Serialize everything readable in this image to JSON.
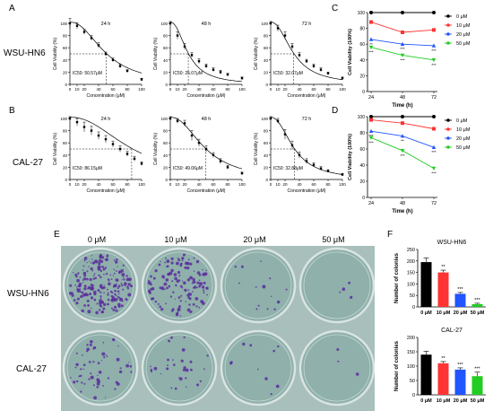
{
  "panels": {
    "A": "A",
    "B": "B",
    "C": "C",
    "D": "D",
    "E": "E",
    "F": "F"
  },
  "row_labels": {
    "wsu": "WSU-HN6",
    "cal": "CAL-27"
  },
  "plate_columns": [
    "0 μM",
    "10 μM",
    "20 μM",
    "50 μM"
  ],
  "colors": {
    "c0": "#000000",
    "c10": "#ff3333",
    "c20": "#2255ff",
    "c50": "#22cc22",
    "plate_bg": "#8fb0ab",
    "plate_rim": "#d9e4e2",
    "colony": "#5b2d9c"
  },
  "chart_data": [
    {
      "id": "A-24",
      "type": "scatter",
      "title": "24 h",
      "ic50_label": "IC50: 50.57μM",
      "xlabel": "Concentration (μM)",
      "ylabel": "Cell Viability (%)",
      "ylim": [
        0,
        100
      ],
      "yticks": [
        0,
        20,
        40,
        60,
        80,
        100
      ],
      "xticks": [
        0,
        10,
        20,
        40,
        60,
        80,
        100
      ],
      "ic50": 50.57,
      "x": [
        0,
        10,
        20,
        30,
        40,
        50,
        60,
        70,
        80,
        100
      ],
      "y": [
        100,
        96,
        86,
        76,
        64,
        50,
        40,
        30,
        22,
        8
      ],
      "err": [
        8,
        5,
        4,
        4,
        4,
        3,
        3,
        3,
        2,
        2
      ]
    },
    {
      "id": "A-48",
      "type": "scatter",
      "title": "48 h",
      "ic50_label": "IC50: 25.07μM",
      "xlabel": "Concentration (μM)",
      "ylabel": "Cell Viability (%)",
      "ylim": [
        0,
        100
      ],
      "yticks": [
        0,
        20,
        40,
        60,
        80,
        100
      ],
      "xticks": [
        0,
        10,
        20,
        40,
        60,
        80,
        100
      ],
      "ic50": 25.07,
      "x": [
        0,
        10,
        20,
        30,
        40,
        50,
        60,
        70,
        80,
        100
      ],
      "y": [
        100,
        80,
        62,
        48,
        38,
        30,
        24,
        20,
        16,
        10
      ],
      "err": [
        3,
        6,
        5,
        4,
        4,
        3,
        3,
        3,
        2,
        2
      ]
    },
    {
      "id": "A-72",
      "type": "scatter",
      "title": "72 h",
      "ic50_label": "IC50: 32.07μM",
      "xlabel": "Concentration (μM)",
      "ylabel": "Cell Viability (%)",
      "ylim": [
        0,
        100
      ],
      "yticks": [
        0,
        20,
        40,
        60,
        80,
        100
      ],
      "xticks": [
        0,
        10,
        20,
        40,
        60,
        80,
        100
      ],
      "ic50": 32.07,
      "x": [
        0,
        10,
        20,
        30,
        40,
        50,
        60,
        70,
        80,
        100
      ],
      "y": [
        100,
        92,
        80,
        62,
        48,
        38,
        30,
        24,
        18,
        10
      ],
      "err": [
        3,
        5,
        6,
        5,
        4,
        3,
        3,
        3,
        2,
        2
      ]
    },
    {
      "id": "B-24",
      "type": "scatter",
      "title": "24 h",
      "ic50_label": "IC50: 86.15μM",
      "xlabel": "Concentration (μM)",
      "ylabel": "Cell Viability (%)",
      "ylim": [
        0,
        100
      ],
      "yticks": [
        0,
        20,
        40,
        60,
        80,
        100
      ],
      "xticks": [
        0,
        10,
        20,
        40,
        60,
        80,
        100
      ],
      "ic50": 86.15,
      "x": [
        0,
        10,
        20,
        30,
        40,
        50,
        60,
        70,
        80,
        90,
        100
      ],
      "y": [
        100,
        94,
        86,
        80,
        72,
        66,
        58,
        50,
        42,
        34,
        26
      ],
      "err": [
        3,
        6,
        8,
        7,
        6,
        6,
        5,
        5,
        4,
        4,
        3
      ]
    },
    {
      "id": "B-48",
      "type": "scatter",
      "title": "48 h",
      "ic50_label": "IC50: 49.06μM",
      "xlabel": "Concentration (μM)",
      "ylabel": "Cell Viability (%)",
      "ylim": [
        0,
        100
      ],
      "yticks": [
        0,
        20,
        40,
        60,
        80,
        100
      ],
      "xticks": [
        0,
        10,
        20,
        40,
        60,
        80,
        100
      ],
      "ic50": 49.06,
      "x": [
        0,
        10,
        20,
        30,
        40,
        50,
        60,
        70,
        80,
        100
      ],
      "y": [
        100,
        96,
        92,
        72,
        60,
        50,
        40,
        30,
        20,
        10
      ],
      "err": [
        3,
        4,
        5,
        8,
        6,
        5,
        4,
        4,
        3,
        2
      ]
    },
    {
      "id": "B-72",
      "type": "scatter",
      "title": "72 h",
      "ic50_label": "IC50: 32.88μM",
      "xlabel": "Concentration (μM)",
      "ylabel": "Cell Viability (%)",
      "ylim": [
        0,
        100
      ],
      "yticks": [
        0,
        20,
        40,
        60,
        80,
        100
      ],
      "xticks": [
        0,
        10,
        20,
        40,
        60,
        80,
        100
      ],
      "ic50": 32.88,
      "x": [
        0,
        10,
        20,
        30,
        40,
        50,
        60,
        70,
        80,
        100
      ],
      "y": [
        100,
        96,
        74,
        56,
        40,
        30,
        24,
        18,
        14,
        8
      ],
      "err": [
        3,
        4,
        8,
        7,
        5,
        4,
        3,
        3,
        2,
        2
      ]
    },
    {
      "id": "C",
      "type": "line",
      "xlabel": "Time (h)",
      "ylabel": "Cell Viability (100%)",
      "ylim": [
        0,
        100
      ],
      "yticks": [
        0,
        20,
        40,
        60,
        80,
        100
      ],
      "x": [
        24,
        48,
        72
      ],
      "legend_position": "right",
      "series": [
        {
          "name": "0 μM",
          "values": [
            100,
            100,
            100
          ],
          "color_key": "c0",
          "marker": "circle"
        },
        {
          "name": "10 μM",
          "values": [
            88,
            75,
            78
          ],
          "color_key": "c10",
          "marker": "square"
        },
        {
          "name": "20 μM",
          "values": [
            66,
            60,
            58
          ],
          "color_key": "c20",
          "marker": "triangle"
        },
        {
          "name": "50 μM",
          "values": [
            56,
            46,
            40
          ],
          "color_key": "c50",
          "marker": "triangle-down"
        }
      ],
      "annotations": [
        "**",
        "***",
        "***",
        "***",
        "***",
        "***"
      ]
    },
    {
      "id": "D",
      "type": "line",
      "xlabel": "Time (h)",
      "ylabel": "Cell Viability (100%)",
      "ylim": [
        0,
        100
      ],
      "yticks": [
        0,
        20,
        40,
        60,
        80,
        100
      ],
      "x": [
        24,
        48,
        72
      ],
      "legend_position": "right",
      "series": [
        {
          "name": "0 μM",
          "values": [
            100,
            100,
            100
          ],
          "color_key": "c0",
          "marker": "circle"
        },
        {
          "name": "10 μM",
          "values": [
            96,
            92,
            85
          ],
          "color_key": "c10",
          "marker": "square"
        },
        {
          "name": "20 μM",
          "values": [
            82,
            76,
            62
          ],
          "color_key": "c20",
          "marker": "triangle"
        },
        {
          "name": "50 μM",
          "values": [
            74,
            58,
            36
          ],
          "color_key": "c50",
          "marker": "triangle-down"
        }
      ],
      "annotations": [
        "***",
        "**",
        "***",
        "***",
        "***",
        "***"
      ]
    },
    {
      "id": "F-WSU",
      "type": "bar",
      "title": "WSU-HN6",
      "ylabel": "Number of colonies",
      "categories": [
        "0 μM",
        "10 μM",
        "20 μM",
        "50 μM"
      ],
      "values": [
        195,
        150,
        57,
        12
      ],
      "err": [
        18,
        10,
        6,
        4
      ],
      "ylim": [
        0,
        250
      ],
      "yticks": [
        0,
        50,
        100,
        150,
        200,
        250
      ],
      "stars": [
        "",
        "**",
        "***",
        "***"
      ]
    },
    {
      "id": "F-CAL",
      "type": "bar",
      "title": "CAL-27",
      "ylabel": "Number of colonies",
      "categories": [
        "0 μM",
        "10 μM",
        "20 μM",
        "50 μM"
      ],
      "values": [
        140,
        110,
        88,
        65
      ],
      "err": [
        12,
        6,
        6,
        14
      ],
      "ylim": [
        0,
        200
      ],
      "yticks": [
        0,
        50,
        100,
        150,
        200
      ],
      "stars": [
        "",
        "**",
        "***",
        "***"
      ]
    }
  ]
}
